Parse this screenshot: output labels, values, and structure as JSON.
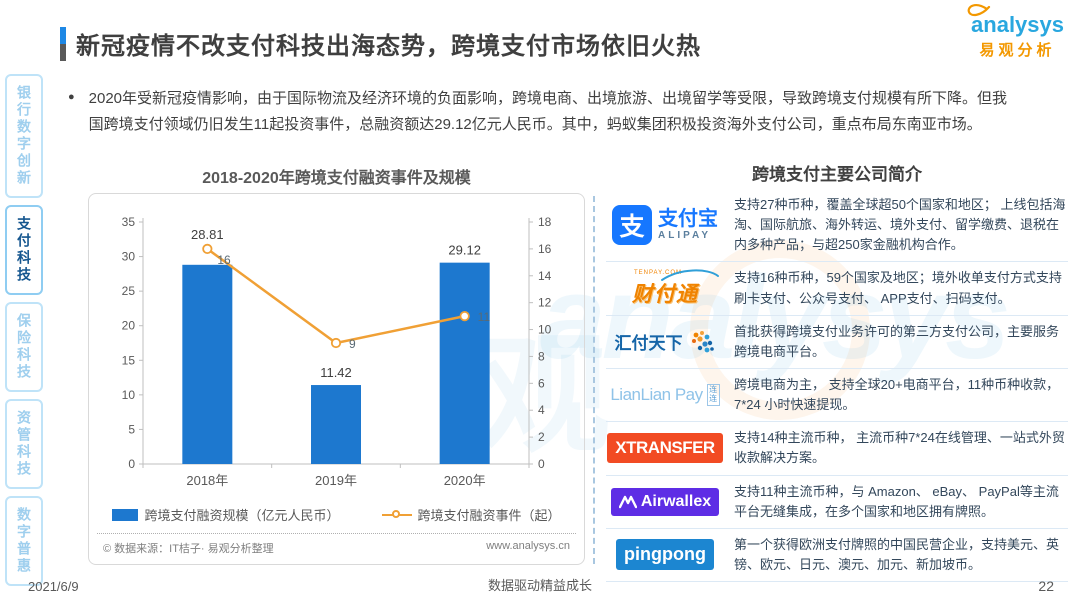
{
  "title": "新冠疫情不改支付科技出海态势，跨境支付市场依旧火热",
  "logo": {
    "en": "analysys",
    "cn": "易观分析"
  },
  "watermark": {
    "en": "analysys",
    "cn": "观"
  },
  "sidebar": {
    "items": [
      {
        "label": "银行数字创新",
        "active": false
      },
      {
        "label": "支付科技",
        "active": true
      },
      {
        "label": "保险科技",
        "active": false
      },
      {
        "label": "资管科技",
        "active": false
      },
      {
        "label": "数字普惠",
        "active": false
      }
    ]
  },
  "bullet": {
    "marker": "●",
    "text": "2020年受新冠疫情影响，由于国际物流及经济环境的负面影响，跨境电商、出境旅游、出境留学等受限，导致跨境支付规模有所下降。但我国跨境支付领域仍旧发生11起投资事件，总融资额达29.12亿元人民币。其中，蚂蚁集团积极投资海外支付公司，重点布局东南亚市场。"
  },
  "chart_data": {
    "type": "bar",
    "subtype": "bar+line combo, dual axis",
    "title": "2018-2020年跨境支付融资事件及规模",
    "categories": [
      "2018年",
      "2019年",
      "2020年"
    ],
    "series": [
      {
        "name": "跨境支付融资规模（亿元人民币）",
        "type": "bar",
        "axis": "left",
        "values": [
          28.81,
          11.42,
          29.12
        ],
        "color": "#1d78cf"
      },
      {
        "name": "跨境支付融资事件（起）",
        "type": "line",
        "axis": "right",
        "values": [
          16,
          9,
          11
        ],
        "color": "#f0a035"
      }
    ],
    "left_axis": {
      "min": 0,
      "max": 35,
      "step": 5
    },
    "right_axis": {
      "min": 0,
      "max": 18,
      "step": 2
    },
    "grid": false,
    "legend_position": "bottom",
    "source_left": "© 数据来源：IT桔子· 易观分析整理",
    "source_right": "www.analysys.cn"
  },
  "companies": {
    "header": "跨境支付主要公司简介",
    "rows": [
      {
        "logo": {
          "type": "alipay",
          "icon": "支",
          "cn": "支付宝",
          "en": "ALIPAY"
        },
        "desc": "支持27种币种，覆盖全球超50个国家和地区； 上线包括海淘、国际航旅、海外转运、境外支付、留学缴费、退税在内多种产品；与超250家金融机构合作。"
      },
      {
        "logo": {
          "type": "tenpay",
          "text": "财付通",
          "sub": "TENPAY.COM"
        },
        "desc": "支持16种币种，59个国家及地区；境外收单支付方式支持刷卡支付、公众号支付、 APP支付、扫码支付。"
      },
      {
        "logo": {
          "type": "huifu",
          "text": "汇付天下"
        },
        "desc": "首批获得跨境支付业务许可的第三方支付公司，主要服务跨境电商平台。"
      },
      {
        "logo": {
          "type": "lianlian",
          "text": "LianLian Pay",
          "badge": "连连"
        },
        "desc": "跨境电商为主， 支持全球20+电商平台，11种币种收款，7*24 小时快速提现。"
      },
      {
        "logo": {
          "type": "xtransfer",
          "text": "XTRANSFER"
        },
        "desc": "支持14种主流币种， 主流币种7*24在线管理、一站式外贸收款解决方案。"
      },
      {
        "logo": {
          "type": "airwallex",
          "text": "Airwallex"
        },
        "desc": "支持11种主流币种，与 Amazon、 eBay、 PayPal等主流平台无缝集成，在多个国家和地区拥有牌照。"
      },
      {
        "logo": {
          "type": "pingpong",
          "text": "pingpong"
        },
        "desc": "第一个获得欧洲支付牌照的中国民营企业，支持美元、英镑、欧元、日元、澳元、加元、新加坡币。"
      }
    ]
  },
  "footer": {
    "date": "2021/6/9",
    "center": "数据驱动精益成长",
    "page": "22"
  }
}
